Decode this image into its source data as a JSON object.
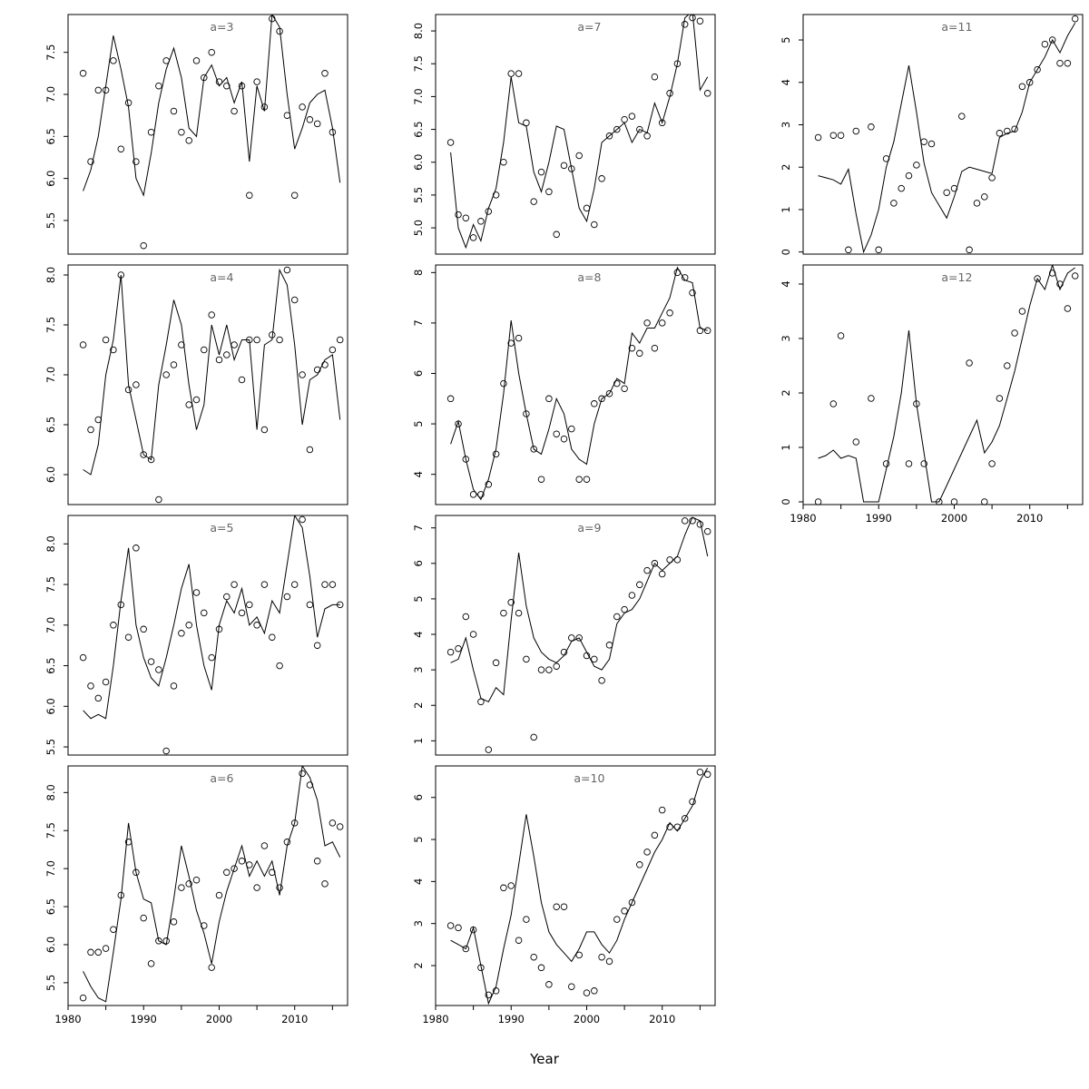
{
  "figure": {
    "xlabel": "Year",
    "background": "#ffffff",
    "line_color": "#000000",
    "point_color": "#000000",
    "panel_label_color": "#666666"
  },
  "axis": {
    "xlim": [
      1980,
      2017
    ],
    "x_major_ticks": [
      1980,
      1990,
      2000,
      2010
    ],
    "x_minor_ticks": [
      1985,
      1995,
      2005,
      2015
    ],
    "years": [
      1982,
      1983,
      1984,
      1985,
      1986,
      1987,
      1988,
      1989,
      1990,
      1991,
      1992,
      1993,
      1994,
      1995,
      1996,
      1997,
      1998,
      1999,
      2000,
      2001,
      2002,
      2003,
      2004,
      2005,
      2006,
      2007,
      2008,
      2009,
      2010,
      2011,
      2012,
      2013,
      2014,
      2015,
      2016
    ]
  },
  "layout": {
    "columns": [
      [
        0,
        1,
        2,
        3
      ],
      [
        4,
        5,
        6,
        7
      ],
      [
        8,
        9
      ]
    ]
  },
  "chart_data": [
    {
      "type": "line+scatter",
      "label": "a=3",
      "ylim": [
        5.1,
        7.95
      ],
      "yticks": [
        5.5,
        6.0,
        6.5,
        7.0,
        7.5
      ],
      "points": [
        7.25,
        6.2,
        7.05,
        7.05,
        7.4,
        6.35,
        6.9,
        6.2,
        5.2,
        6.55,
        7.1,
        7.4,
        6.8,
        6.55,
        6.45,
        7.4,
        7.2,
        7.5,
        7.15,
        7.1,
        6.8,
        7.1,
        5.8,
        7.15,
        6.85,
        7.9,
        7.75,
        6.75,
        5.8,
        6.85,
        6.7,
        6.65,
        7.25,
        6.55,
        null
      ],
      "line": [
        5.85,
        6.1,
        6.5,
        7.1,
        7.7,
        7.3,
        6.85,
        6.0,
        5.8,
        6.3,
        6.9,
        7.3,
        7.55,
        7.2,
        6.6,
        6.5,
        7.2,
        7.35,
        7.1,
        7.2,
        6.9,
        7.15,
        6.2,
        7.1,
        6.8,
        7.95,
        7.8,
        7.0,
        6.35,
        6.6,
        6.9,
        7.0,
        7.05,
        6.6,
        5.95
      ]
    },
    {
      "type": "line+scatter",
      "label": "a=4",
      "ylim": [
        5.7,
        8.1
      ],
      "yticks": [
        6.0,
        6.5,
        7.0,
        7.5,
        8.0
      ],
      "points": [
        7.3,
        6.45,
        6.55,
        7.35,
        7.25,
        8.0,
        6.85,
        6.9,
        6.2,
        6.15,
        5.75,
        7.0,
        7.1,
        7.3,
        6.7,
        6.75,
        7.25,
        7.6,
        7.15,
        7.2,
        7.3,
        6.95,
        7.35,
        7.35,
        6.45,
        7.4,
        7.35,
        8.05,
        7.75,
        7.0,
        6.25,
        7.05,
        7.1,
        7.25,
        7.35
      ],
      "line": [
        6.05,
        6.0,
        6.3,
        7.0,
        7.35,
        8.0,
        6.9,
        6.55,
        6.2,
        6.15,
        6.9,
        7.3,
        7.75,
        7.5,
        6.9,
        6.45,
        6.7,
        7.5,
        7.2,
        7.5,
        7.15,
        7.35,
        7.35,
        6.45,
        7.3,
        7.35,
        8.05,
        7.9,
        7.3,
        6.5,
        6.95,
        7.0,
        7.15,
        7.2,
        6.55
      ]
    },
    {
      "type": "line+scatter",
      "label": "a=5",
      "ylim": [
        5.4,
        8.35
      ],
      "yticks": [
        5.5,
        6.0,
        6.5,
        7.0,
        7.5,
        8.0
      ],
      "points": [
        6.6,
        6.25,
        6.1,
        6.3,
        7.0,
        7.25,
        6.85,
        7.95,
        6.95,
        6.55,
        6.45,
        5.45,
        6.25,
        6.9,
        7.0,
        7.4,
        7.15,
        6.6,
        6.95,
        7.35,
        7.5,
        7.15,
        7.25,
        7.0,
        7.5,
        6.85,
        6.5,
        7.35,
        7.5,
        8.3,
        7.25,
        6.75,
        7.5,
        7.5,
        7.25
      ],
      "line": [
        5.95,
        5.85,
        5.9,
        5.85,
        6.5,
        7.3,
        7.95,
        7.0,
        6.6,
        6.35,
        6.25,
        6.6,
        7.0,
        7.45,
        7.75,
        7.0,
        6.5,
        6.2,
        7.0,
        7.3,
        7.15,
        7.45,
        7.0,
        7.1,
        6.9,
        7.3,
        7.15,
        7.75,
        8.35,
        8.2,
        7.6,
        6.85,
        7.2,
        7.25,
        7.25
      ]
    },
    {
      "type": "line+scatter",
      "label": "a=6",
      "ylim": [
        5.2,
        8.35
      ],
      "yticks": [
        5.5,
        6.0,
        6.5,
        7.0,
        7.5,
        8.0
      ],
      "points": [
        5.3,
        5.9,
        5.9,
        5.95,
        6.2,
        6.65,
        7.35,
        6.95,
        6.35,
        5.75,
        6.05,
        6.05,
        6.3,
        6.75,
        6.8,
        6.85,
        6.25,
        5.7,
        6.65,
        6.95,
        7.0,
        7.1,
        7.05,
        6.75,
        7.3,
        6.95,
        6.75,
        7.35,
        7.6,
        8.25,
        8.1,
        7.1,
        6.8,
        7.6,
        7.55
      ],
      "line": [
        5.65,
        5.45,
        5.3,
        5.25,
        5.9,
        6.6,
        7.6,
        6.95,
        6.6,
        6.55,
        6.05,
        6.0,
        6.6,
        7.3,
        6.9,
        6.45,
        6.15,
        5.75,
        6.3,
        6.7,
        7.0,
        7.3,
        6.9,
        7.1,
        6.9,
        7.1,
        6.65,
        7.3,
        7.6,
        8.35,
        8.2,
        7.9,
        7.3,
        7.35,
        7.15
      ]
    },
    {
      "type": "line+scatter",
      "label": "a=7",
      "ylim": [
        4.6,
        8.25
      ],
      "yticks": [
        5.0,
        5.5,
        6.0,
        6.5,
        7.0,
        7.5,
        8.0
      ],
      "points": [
        6.3,
        5.2,
        5.15,
        4.85,
        5.1,
        5.25,
        5.5,
        6.0,
        7.35,
        7.35,
        6.6,
        5.4,
        5.85,
        5.55,
        4.9,
        5.95,
        5.9,
        6.1,
        5.3,
        5.05,
        5.75,
        6.4,
        6.5,
        6.65,
        6.7,
        6.5,
        6.4,
        7.3,
        6.6,
        7.05,
        7.5,
        8.1,
        8.2,
        8.15,
        7.05
      ],
      "line": [
        6.15,
        5.0,
        4.7,
        5.05,
        4.8,
        5.3,
        5.6,
        6.3,
        7.3,
        6.6,
        6.55,
        5.85,
        5.55,
        6.0,
        6.55,
        6.5,
        5.9,
        5.3,
        5.1,
        5.6,
        6.3,
        6.4,
        6.5,
        6.6,
        6.3,
        6.5,
        6.45,
        6.9,
        6.6,
        7.0,
        7.5,
        8.2,
        8.3,
        7.1,
        7.3
      ]
    },
    {
      "type": "line+scatter",
      "label": "a=8",
      "ylim": [
        3.4,
        8.15
      ],
      "yticks": [
        4,
        5,
        6,
        7,
        8
      ],
      "points": [
        5.5,
        5.0,
        4.3,
        3.6,
        3.6,
        3.8,
        4.4,
        5.8,
        6.6,
        6.7,
        5.2,
        4.5,
        3.9,
        5.5,
        4.8,
        4.7,
        4.9,
        3.9,
        3.9,
        5.4,
        5.5,
        5.6,
        5.8,
        5.7,
        6.5,
        6.4,
        7.0,
        6.5,
        7.0,
        7.2,
        8.0,
        7.9,
        7.6,
        6.85,
        6.85
      ],
      "line": [
        4.6,
        5.05,
        4.3,
        3.7,
        3.5,
        3.9,
        4.5,
        5.6,
        7.05,
        6.0,
        5.2,
        4.5,
        4.4,
        4.9,
        5.5,
        5.2,
        4.5,
        4.3,
        4.2,
        5.0,
        5.5,
        5.6,
        5.9,
        5.8,
        6.8,
        6.6,
        6.9,
        6.9,
        7.2,
        7.5,
        8.1,
        7.85,
        7.8,
        6.9,
        6.85
      ]
    },
    {
      "type": "line+scatter",
      "label": "a=9",
      "ylim": [
        0.6,
        7.35
      ],
      "yticks": [
        1,
        2,
        3,
        4,
        5,
        6,
        7
      ],
      "points": [
        3.5,
        3.6,
        4.5,
        4.0,
        2.1,
        0.75,
        3.2,
        4.6,
        4.9,
        4.6,
        3.3,
        1.1,
        3.0,
        3.0,
        3.1,
        3.5,
        3.9,
        3.9,
        3.4,
        3.3,
        2.7,
        3.7,
        4.5,
        4.7,
        5.1,
        5.4,
        5.8,
        6.0,
        5.7,
        6.1,
        6.1,
        7.2,
        7.2,
        7.1,
        6.9
      ],
      "line": [
        3.2,
        3.3,
        3.9,
        3.0,
        2.2,
        2.1,
        2.5,
        2.3,
        4.4,
        6.3,
        4.8,
        3.9,
        3.5,
        3.3,
        3.2,
        3.4,
        3.8,
        3.9,
        3.5,
        3.1,
        3.0,
        3.3,
        4.3,
        4.6,
        4.7,
        5.0,
        5.5,
        6.0,
        5.8,
        6.0,
        6.2,
        6.8,
        7.3,
        7.2,
        6.2
      ]
    },
    {
      "type": "line+scatter",
      "label": "a=10",
      "ylim": [
        1.05,
        6.75
      ],
      "yticks": [
        2,
        3,
        4,
        5,
        6
      ],
      "points": [
        2.95,
        2.9,
        2.4,
        2.85,
        1.95,
        1.3,
        1.4,
        3.85,
        3.9,
        2.6,
        3.1,
        2.2,
        1.95,
        1.55,
        3.4,
        3.4,
        1.5,
        2.25,
        1.35,
        1.4,
        2.2,
        2.1,
        3.1,
        3.3,
        3.5,
        4.4,
        4.7,
        5.1,
        5.7,
        5.3,
        5.3,
        5.5,
        5.9,
        6.6,
        6.55
      ],
      "line": [
        2.6,
        2.5,
        2.4,
        2.9,
        2.0,
        1.1,
        1.5,
        2.4,
        3.2,
        4.4,
        5.6,
        4.6,
        3.5,
        2.8,
        2.5,
        2.3,
        2.1,
        2.4,
        2.8,
        2.8,
        2.5,
        2.3,
        2.6,
        3.1,
        3.5,
        3.9,
        4.3,
        4.7,
        5.0,
        5.4,
        5.2,
        5.5,
        5.8,
        6.4,
        6.7
      ]
    },
    {
      "type": "line+scatter",
      "label": "a=11",
      "ylim": [
        -0.05,
        5.6
      ],
      "yticks": [
        0,
        1,
        2,
        3,
        4,
        5
      ],
      "points": [
        2.7,
        null,
        2.75,
        2.75,
        0.05,
        2.85,
        null,
        2.95,
        0.05,
        2.2,
        1.15,
        1.5,
        1.8,
        2.05,
        2.6,
        2.55,
        null,
        1.4,
        1.5,
        3.2,
        0.05,
        1.15,
        1.3,
        1.75,
        2.8,
        2.85,
        2.9,
        3.9,
        4.0,
        4.3,
        4.9,
        5.0,
        4.45,
        4.45,
        5.5
      ],
      "line": [
        1.8,
        1.75,
        1.7,
        1.6,
        1.95,
        0.9,
        0.0,
        0.4,
        1.0,
        2.0,
        2.6,
        3.5,
        4.4,
        3.3,
        2.1,
        1.4,
        1.1,
        0.8,
        1.3,
        1.9,
        2.0,
        1.95,
        1.9,
        1.85,
        2.7,
        2.8,
        2.85,
        3.3,
        4.0,
        4.3,
        4.6,
        5.0,
        4.7,
        5.1,
        5.4
      ]
    },
    {
      "type": "line+scatter",
      "label": "a=12",
      "ylim": [
        -0.05,
        4.35
      ],
      "yticks": [
        0,
        1,
        2,
        3,
        4
      ],
      "points": [
        0.0,
        null,
        1.8,
        3.05,
        null,
        1.1,
        null,
        1.9,
        null,
        0.7,
        null,
        null,
        0.7,
        1.8,
        0.7,
        null,
        0.0,
        null,
        0.0,
        null,
        2.55,
        null,
        0.0,
        0.7,
        1.9,
        2.5,
        3.1,
        3.5,
        null,
        4.1,
        null,
        4.2,
        4.0,
        3.55,
        4.15
      ],
      "line": [
        0.8,
        0.85,
        0.95,
        0.8,
        0.85,
        0.8,
        0.0,
        0.0,
        0.0,
        0.6,
        1.2,
        2.0,
        3.15,
        1.8,
        0.9,
        0.0,
        0.0,
        0.3,
        0.6,
        0.9,
        1.2,
        1.5,
        0.9,
        1.1,
        1.4,
        1.9,
        2.4,
        3.0,
        3.6,
        4.1,
        3.9,
        4.35,
        3.9,
        4.2,
        4.3
      ]
    }
  ]
}
